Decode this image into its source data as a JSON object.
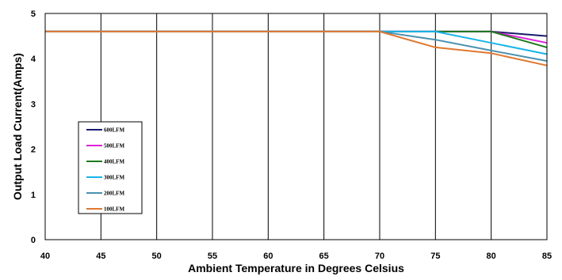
{
  "chart_data": {
    "type": "line",
    "title": "",
    "xlabel": "Ambient Temperature in Degrees Celsius",
    "ylabel": "Output  Load Current(Amps)",
    "xlim": [
      40,
      85
    ],
    "ylim": [
      0,
      5
    ],
    "x_ticks": [
      "40",
      "45",
      "50",
      "55",
      "60",
      "65",
      "70",
      "75",
      "80",
      "85"
    ],
    "y_ticks": [
      "0",
      "1",
      "2",
      "3",
      "4",
      "5"
    ],
    "grid": "vertical",
    "legend_position": "left-middle",
    "series": [
      {
        "name": "600LFM",
        "color": "#1a1a6e",
        "x": [
          40,
          70,
          75,
          80,
          85
        ],
        "y": [
          4.6,
          4.6,
          4.6,
          4.6,
          4.5
        ]
      },
      {
        "name": "500LFM",
        "color": "#e020d8",
        "x": [
          40,
          70,
          75,
          80,
          85
        ],
        "y": [
          4.6,
          4.6,
          4.6,
          4.6,
          4.35
        ]
      },
      {
        "name": "400LFM",
        "color": "#1a7a1a",
        "x": [
          40,
          70,
          75,
          80,
          85
        ],
        "y": [
          4.6,
          4.6,
          4.6,
          4.6,
          4.25
        ]
      },
      {
        "name": "300LFM",
        "color": "#18b4e8",
        "x": [
          40,
          70,
          75,
          80,
          85
        ],
        "y": [
          4.6,
          4.6,
          4.6,
          4.35,
          4.1
        ]
      },
      {
        "name": "200LFM",
        "color": "#4a90b0",
        "x": [
          40,
          70,
          75,
          80,
          85
        ],
        "y": [
          4.6,
          4.6,
          4.42,
          4.18,
          3.95
        ]
      },
      {
        "name": "100LFM",
        "color": "#e07830",
        "x": [
          40,
          70,
          75,
          80,
          85
        ],
        "y": [
          4.6,
          4.6,
          4.25,
          4.12,
          3.85
        ]
      }
    ]
  }
}
